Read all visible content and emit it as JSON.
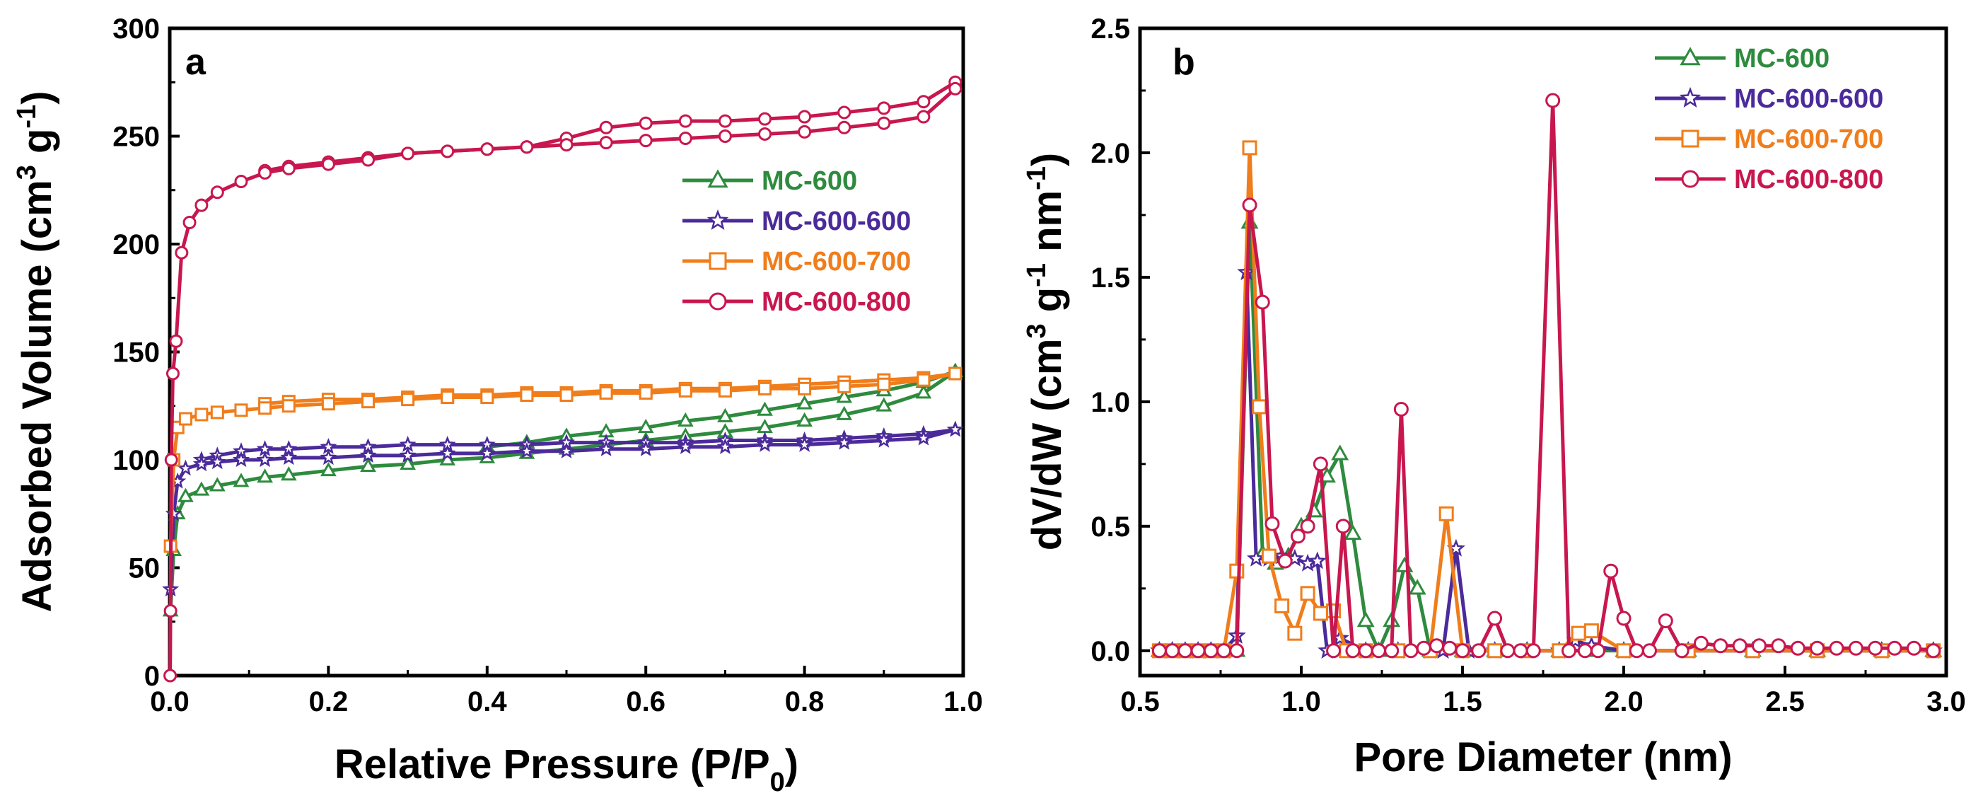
{
  "chart_data": [
    {
      "type": "line",
      "panel": "a",
      "xlabel": "Relative Pressure (P/P",
      "xlabel_sub": "0",
      "xlabel_tail": ")",
      "ylabel": "Adsorbed Volume (cm",
      "ylabel_sup1": "3",
      "ylabel_mid": " g",
      "ylabel_sup2": "-1",
      "ylabel_tail": ")",
      "xlim": [
        0,
        1.0
      ],
      "ylim": [
        0,
        300
      ],
      "xticks": [
        "0.0",
        "0.2",
        "0.4",
        "0.6",
        "0.8",
        "1.0"
      ],
      "yticks": [
        "0",
        "50",
        "100",
        "150",
        "200",
        "250",
        "300"
      ],
      "legend_position": "center-right",
      "series": [
        {
          "name": "MC-600",
          "color": "#2e8b3e",
          "marker": "triangle",
          "x": [
            0.001,
            0.005,
            0.01,
            0.02,
            0.04,
            0.06,
            0.09,
            0.12,
            0.15,
            0.2,
            0.25,
            0.3,
            0.35,
            0.4,
            0.45,
            0.5,
            0.55,
            0.6,
            0.65,
            0.7,
            0.75,
            0.8,
            0.85,
            0.9,
            0.95,
            0.99
          ],
          "y": [
            30,
            58,
            75,
            83,
            86,
            88,
            90,
            92,
            93,
            95,
            97,
            98,
            100,
            101,
            103,
            105,
            107,
            109,
            111,
            113,
            115,
            118,
            121,
            125,
            131,
            141
          ],
          "desorption_y": [
            null,
            null,
            null,
            null,
            null,
            null,
            null,
            null,
            null,
            null,
            null,
            null,
            null,
            106,
            108,
            111,
            113,
            115,
            118,
            120,
            123,
            126,
            129,
            132,
            136,
            141
          ]
        },
        {
          "name": "MC-600-600",
          "color": "#4b2a9a",
          "marker": "star",
          "x": [
            0.001,
            0.005,
            0.01,
            0.02,
            0.04,
            0.06,
            0.09,
            0.12,
            0.15,
            0.2,
            0.25,
            0.3,
            0.35,
            0.4,
            0.45,
            0.5,
            0.55,
            0.6,
            0.65,
            0.7,
            0.75,
            0.8,
            0.85,
            0.9,
            0.95,
            0.99
          ],
          "y": [
            40,
            75,
            90,
            96,
            98,
            99,
            100,
            100,
            101,
            101,
            102,
            102,
            103,
            103,
            104,
            104,
            105,
            105,
            106,
            106,
            107,
            107,
            108,
            109,
            110,
            114
          ],
          "desorption_y": [
            null,
            null,
            null,
            null,
            100,
            102,
            104,
            105,
            105,
            106,
            106,
            107,
            107,
            107,
            107,
            108,
            108,
            108,
            108,
            109,
            109,
            109,
            110,
            111,
            112,
            114
          ]
        },
        {
          "name": "MC-600-700",
          "color": "#f07d1b",
          "marker": "square",
          "x": [
            0.001,
            0.005,
            0.01,
            0.02,
            0.04,
            0.06,
            0.09,
            0.12,
            0.15,
            0.2,
            0.25,
            0.3,
            0.35,
            0.4,
            0.45,
            0.5,
            0.55,
            0.6,
            0.65,
            0.7,
            0.75,
            0.8,
            0.85,
            0.9,
            0.95,
            0.99
          ],
          "y": [
            60,
            100,
            115,
            119,
            121,
            122,
            123,
            124,
            125,
            126,
            127,
            128,
            129,
            129,
            130,
            130,
            131,
            131,
            132,
            132,
            133,
            133,
            134,
            135,
            137,
            140
          ],
          "desorption_y": [
            null,
            null,
            null,
            null,
            null,
            null,
            null,
            126,
            127,
            128,
            128,
            129,
            130,
            130,
            131,
            131,
            132,
            132,
            133,
            133,
            134,
            135,
            136,
            137,
            138,
            140
          ]
        },
        {
          "name": "MC-600-800",
          "color": "#c8174f",
          "marker": "circle",
          "x": [
            0.0005,
            0.001,
            0.002,
            0.004,
            0.008,
            0.015,
            0.025,
            0.04,
            0.06,
            0.09,
            0.12,
            0.15,
            0.2,
            0.25,
            0.3,
            0.35,
            0.4,
            0.45,
            0.5,
            0.55,
            0.6,
            0.65,
            0.7,
            0.75,
            0.8,
            0.85,
            0.9,
            0.95,
            0.99
          ],
          "y": [
            0,
            30,
            100,
            140,
            155,
            196,
            210,
            218,
            224,
            229,
            233,
            235,
            237,
            239,
            242,
            243,
            244,
            245,
            246,
            247,
            248,
            249,
            250,
            251,
            252,
            254,
            256,
            259,
            272
          ],
          "desorption_y": [
            null,
            null,
            null,
            null,
            null,
            null,
            null,
            null,
            null,
            null,
            234,
            236,
            238,
            240,
            242,
            243,
            244,
            245,
            249,
            254,
            256,
            257,
            257,
            258,
            259,
            261,
            263,
            266,
            275
          ]
        }
      ]
    },
    {
      "type": "line",
      "panel": "b",
      "xlabel": "Pore Diameter (nm)",
      "ylabel": "dV/dW (cm",
      "ylabel_sup1": "3",
      "ylabel_mid": " g",
      "ylabel_sup2": "-1",
      "ylabel_mid2": " nm",
      "ylabel_sup3": "-1",
      "ylabel_tail": ")",
      "xlim": [
        0.5,
        3.0
      ],
      "ylim": [
        -0.1,
        2.5
      ],
      "xticks": [
        "0.5",
        "1.0",
        "1.5",
        "2.0",
        "2.5",
        "3.0"
      ],
      "yticks": [
        "0.0",
        "0.5",
        "1.0",
        "1.5",
        "2.0",
        "2.5"
      ],
      "legend_position": "top-right",
      "series": [
        {
          "name": "MC-600",
          "color": "#2e8b3e",
          "marker": "triangle",
          "x": [
            0.56,
            0.6,
            0.64,
            0.68,
            0.72,
            0.76,
            0.8,
            0.84,
            0.88,
            0.92,
            0.96,
            1.0,
            1.04,
            1.08,
            1.12,
            1.16,
            1.2,
            1.24,
            1.28,
            1.32,
            1.36,
            1.4,
            1.5,
            1.6,
            1.7,
            1.8,
            1.9,
            2.0,
            2.2,
            2.4,
            2.6,
            2.8,
            2.96
          ],
          "y": [
            0,
            0,
            0,
            0,
            0,
            0,
            0,
            1.72,
            0.39,
            0.35,
            0.38,
            0.5,
            0.56,
            0.7,
            0.79,
            0.47,
            0.12,
            0.0,
            0.12,
            0.34,
            0.25,
            0.0,
            0,
            0,
            0,
            0,
            0,
            0,
            0,
            0,
            0,
            0,
            0
          ]
        },
        {
          "name": "MC-600-600",
          "color": "#4b2a9a",
          "marker": "star",
          "x": [
            0.56,
            0.6,
            0.64,
            0.68,
            0.72,
            0.76,
            0.8,
            0.83,
            0.86,
            0.9,
            0.94,
            0.98,
            1.02,
            1.05,
            1.08,
            1.12,
            1.2,
            1.3,
            1.4,
            1.44,
            1.48,
            1.52,
            1.6,
            1.7,
            1.8,
            1.85,
            1.9,
            2.0,
            2.2,
            2.4,
            2.6,
            2.8,
            2.96
          ],
          "y": [
            0,
            0,
            0,
            0,
            0,
            0,
            0.06,
            1.52,
            0.37,
            0.37,
            0.38,
            0.37,
            0.35,
            0.36,
            0.0,
            0.05,
            0,
            0,
            0,
            0.0,
            0.41,
            0.0,
            0,
            0,
            0,
            0.04,
            0.02,
            0,
            0,
            0,
            0,
            0,
            0
          ]
        },
        {
          "name": "MC-600-700",
          "color": "#f07d1b",
          "marker": "square",
          "x": [
            0.56,
            0.6,
            0.64,
            0.68,
            0.72,
            0.76,
            0.8,
            0.84,
            0.87,
            0.9,
            0.94,
            0.98,
            1.02,
            1.06,
            1.1,
            1.14,
            1.2,
            1.3,
            1.4,
            1.45,
            1.5,
            1.6,
            1.7,
            1.8,
            1.86,
            1.9,
            2.0,
            2.2,
            2.4,
            2.6,
            2.8,
            2.96
          ],
          "y": [
            0,
            0,
            0,
            0,
            0,
            0,
            0.32,
            2.02,
            0.98,
            0.38,
            0.18,
            0.07,
            0.23,
            0.15,
            0.16,
            0.0,
            0,
            0,
            0,
            0.55,
            0.0,
            0,
            0,
            0,
            0.07,
            0.08,
            0,
            0,
            0,
            0,
            0,
            0
          ]
        },
        {
          "name": "MC-600-800",
          "color": "#c8174f",
          "marker": "circle",
          "x": [
            0.56,
            0.6,
            0.64,
            0.68,
            0.72,
            0.76,
            0.8,
            0.84,
            0.88,
            0.91,
            0.95,
            0.99,
            1.02,
            1.06,
            1.1,
            1.13,
            1.16,
            1.2,
            1.24,
            1.28,
            1.31,
            1.34,
            1.38,
            1.42,
            1.46,
            1.5,
            1.55,
            1.6,
            1.64,
            1.68,
            1.72,
            1.78,
            1.83,
            1.88,
            1.92,
            1.96,
            2.0,
            2.04,
            2.08,
            2.13,
            2.18,
            2.24,
            2.3,
            2.36,
            2.42,
            2.48,
            2.54,
            2.6,
            2.66,
            2.72,
            2.78,
            2.84,
            2.9,
            2.96
          ],
          "y": [
            0,
            0,
            0,
            0,
            0,
            0,
            0,
            1.79,
            1.4,
            0.51,
            0.36,
            0.46,
            0.5,
            0.75,
            0.0,
            0.5,
            0.0,
            0,
            0,
            0,
            0.97,
            0.0,
            0.01,
            0.02,
            0.01,
            0,
            0,
            0.13,
            0,
            0,
            0,
            2.21,
            0,
            0,
            0,
            0.32,
            0.13,
            0,
            0,
            0.12,
            0,
            0.03,
            0.02,
            0.02,
            0.02,
            0.02,
            0.01,
            0.01,
            0.01,
            0.01,
            0.01,
            0.01,
            0.01,
            0.0
          ]
        }
      ]
    }
  ]
}
